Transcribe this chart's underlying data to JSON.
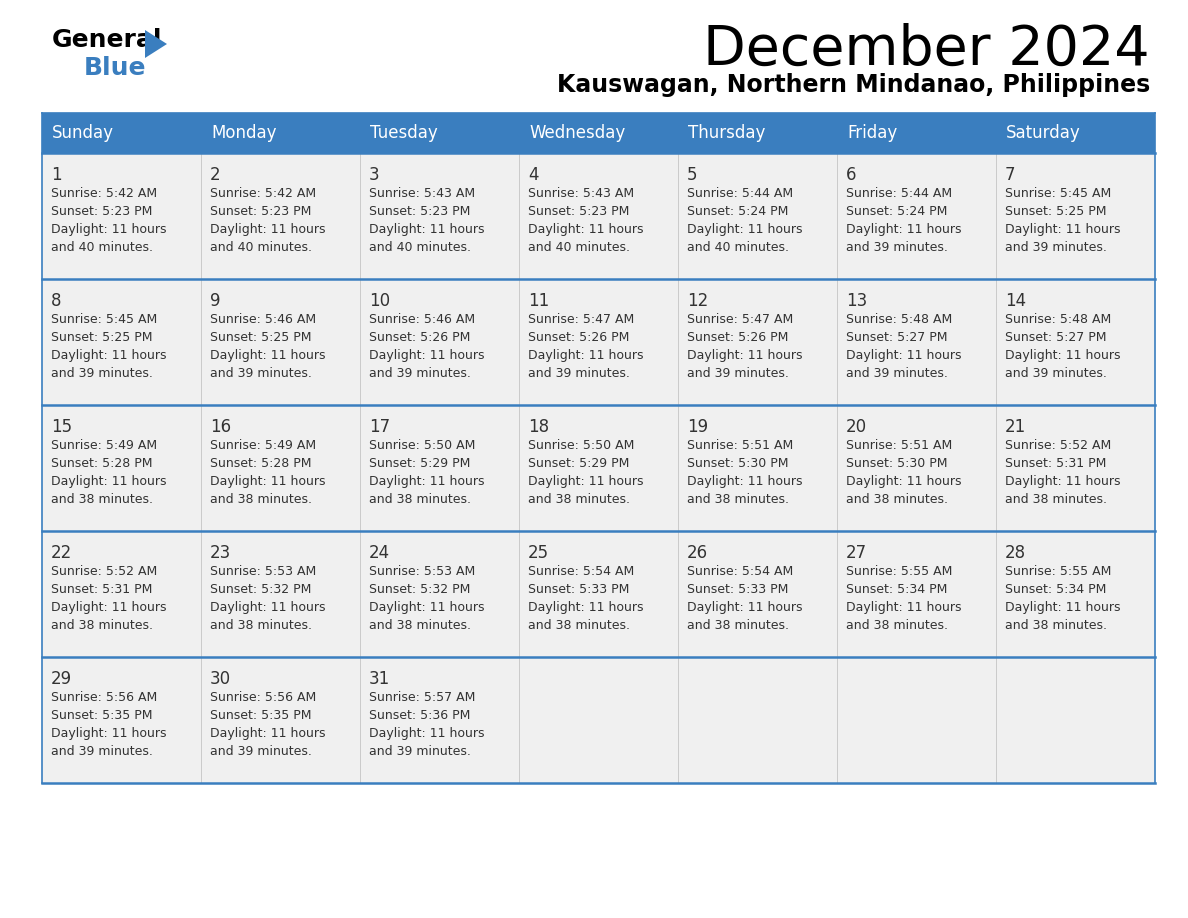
{
  "title": "December 2024",
  "subtitle": "Kauswagan, Northern Mindanao, Philippines",
  "days_of_week": [
    "Sunday",
    "Monday",
    "Tuesday",
    "Wednesday",
    "Thursday",
    "Friday",
    "Saturday"
  ],
  "header_bg": "#3a7ebf",
  "header_text": "#ffffff",
  "row_bg": "#f0f0f0",
  "separator_color": "#3a7ebf",
  "text_color": "#333333",
  "calendar_data": [
    [
      {
        "day": 1,
        "sunrise": "5:42 AM",
        "sunset": "5:23 PM",
        "daylight_h": "11 hours",
        "daylight_m": "and 40 minutes."
      },
      {
        "day": 2,
        "sunrise": "5:42 AM",
        "sunset": "5:23 PM",
        "daylight_h": "11 hours",
        "daylight_m": "and 40 minutes."
      },
      {
        "day": 3,
        "sunrise": "5:43 AM",
        "sunset": "5:23 PM",
        "daylight_h": "11 hours",
        "daylight_m": "and 40 minutes."
      },
      {
        "day": 4,
        "sunrise": "5:43 AM",
        "sunset": "5:23 PM",
        "daylight_h": "11 hours",
        "daylight_m": "and 40 minutes."
      },
      {
        "day": 5,
        "sunrise": "5:44 AM",
        "sunset": "5:24 PM",
        "daylight_h": "11 hours",
        "daylight_m": "and 40 minutes."
      },
      {
        "day": 6,
        "sunrise": "5:44 AM",
        "sunset": "5:24 PM",
        "daylight_h": "11 hours",
        "daylight_m": "and 39 minutes."
      },
      {
        "day": 7,
        "sunrise": "5:45 AM",
        "sunset": "5:25 PM",
        "daylight_h": "11 hours",
        "daylight_m": "and 39 minutes."
      }
    ],
    [
      {
        "day": 8,
        "sunrise": "5:45 AM",
        "sunset": "5:25 PM",
        "daylight_h": "11 hours",
        "daylight_m": "and 39 minutes."
      },
      {
        "day": 9,
        "sunrise": "5:46 AM",
        "sunset": "5:25 PM",
        "daylight_h": "11 hours",
        "daylight_m": "and 39 minutes."
      },
      {
        "day": 10,
        "sunrise": "5:46 AM",
        "sunset": "5:26 PM",
        "daylight_h": "11 hours",
        "daylight_m": "and 39 minutes."
      },
      {
        "day": 11,
        "sunrise": "5:47 AM",
        "sunset": "5:26 PM",
        "daylight_h": "11 hours",
        "daylight_m": "and 39 minutes."
      },
      {
        "day": 12,
        "sunrise": "5:47 AM",
        "sunset": "5:26 PM",
        "daylight_h": "11 hours",
        "daylight_m": "and 39 minutes."
      },
      {
        "day": 13,
        "sunrise": "5:48 AM",
        "sunset": "5:27 PM",
        "daylight_h": "11 hours",
        "daylight_m": "and 39 minutes."
      },
      {
        "day": 14,
        "sunrise": "5:48 AM",
        "sunset": "5:27 PM",
        "daylight_h": "11 hours",
        "daylight_m": "and 39 minutes."
      }
    ],
    [
      {
        "day": 15,
        "sunrise": "5:49 AM",
        "sunset": "5:28 PM",
        "daylight_h": "11 hours",
        "daylight_m": "and 38 minutes."
      },
      {
        "day": 16,
        "sunrise": "5:49 AM",
        "sunset": "5:28 PM",
        "daylight_h": "11 hours",
        "daylight_m": "and 38 minutes."
      },
      {
        "day": 17,
        "sunrise": "5:50 AM",
        "sunset": "5:29 PM",
        "daylight_h": "11 hours",
        "daylight_m": "and 38 minutes."
      },
      {
        "day": 18,
        "sunrise": "5:50 AM",
        "sunset": "5:29 PM",
        "daylight_h": "11 hours",
        "daylight_m": "and 38 minutes."
      },
      {
        "day": 19,
        "sunrise": "5:51 AM",
        "sunset": "5:30 PM",
        "daylight_h": "11 hours",
        "daylight_m": "and 38 minutes."
      },
      {
        "day": 20,
        "sunrise": "5:51 AM",
        "sunset": "5:30 PM",
        "daylight_h": "11 hours",
        "daylight_m": "and 38 minutes."
      },
      {
        "day": 21,
        "sunrise": "5:52 AM",
        "sunset": "5:31 PM",
        "daylight_h": "11 hours",
        "daylight_m": "and 38 minutes."
      }
    ],
    [
      {
        "day": 22,
        "sunrise": "5:52 AM",
        "sunset": "5:31 PM",
        "daylight_h": "11 hours",
        "daylight_m": "and 38 minutes."
      },
      {
        "day": 23,
        "sunrise": "5:53 AM",
        "sunset": "5:32 PM",
        "daylight_h": "11 hours",
        "daylight_m": "and 38 minutes."
      },
      {
        "day": 24,
        "sunrise": "5:53 AM",
        "sunset": "5:32 PM",
        "daylight_h": "11 hours",
        "daylight_m": "and 38 minutes."
      },
      {
        "day": 25,
        "sunrise": "5:54 AM",
        "sunset": "5:33 PM",
        "daylight_h": "11 hours",
        "daylight_m": "and 38 minutes."
      },
      {
        "day": 26,
        "sunrise": "5:54 AM",
        "sunset": "5:33 PM",
        "daylight_h": "11 hours",
        "daylight_m": "and 38 minutes."
      },
      {
        "day": 27,
        "sunrise": "5:55 AM",
        "sunset": "5:34 PM",
        "daylight_h": "11 hours",
        "daylight_m": "and 38 minutes."
      },
      {
        "day": 28,
        "sunrise": "5:55 AM",
        "sunset": "5:34 PM",
        "daylight_h": "11 hours",
        "daylight_m": "and 38 minutes."
      }
    ],
    [
      {
        "day": 29,
        "sunrise": "5:56 AM",
        "sunset": "5:35 PM",
        "daylight_h": "11 hours",
        "daylight_m": "and 39 minutes."
      },
      {
        "day": 30,
        "sunrise": "5:56 AM",
        "sunset": "5:35 PM",
        "daylight_h": "11 hours",
        "daylight_m": "and 39 minutes."
      },
      {
        "day": 31,
        "sunrise": "5:57 AM",
        "sunset": "5:36 PM",
        "daylight_h": "11 hours",
        "daylight_m": "and 39 minutes."
      },
      null,
      null,
      null,
      null
    ]
  ],
  "logo_triangle_color": "#3a7ebf"
}
